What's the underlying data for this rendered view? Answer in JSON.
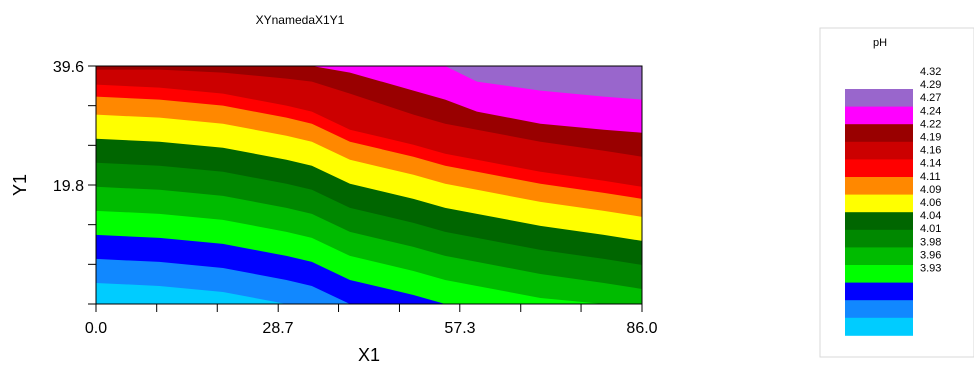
{
  "chart_data": {
    "type": "heatmap",
    "title": "XYnamedaX1Y1",
    "xlabel": "X1",
    "ylabel": "Y1",
    "x_ticks": [
      "0.0",
      "28.7",
      "57.3",
      "86.0"
    ],
    "y_ticks": [
      "39.6",
      "19.8"
    ],
    "xlim": [
      0,
      86
    ],
    "ylim": [
      0,
      39.6
    ],
    "colorbar": {
      "title": "pH",
      "levels": [
        "4.32",
        "4.29",
        "4.27",
        "4.24",
        "4.22",
        "4.19",
        "4.16",
        "4.14",
        "4.11",
        "4.09",
        "4.06",
        "4.04",
        "4.01",
        "3.98",
        "3.96",
        "3.93"
      ],
      "colors": [
        "#9966cc",
        "#ff00ff",
        "#990000",
        "#cc0000",
        "#ff0000",
        "#ff8800",
        "#ffff00",
        "#006600",
        "#008800",
        "#00bb00",
        "#00ff00",
        "#0000ff",
        "#1188ff",
        "#00ccff"
      ]
    },
    "boundaries": [
      {
        "x": [
          0,
          10,
          20,
          30,
          34,
          40,
          50,
          55,
          60,
          70,
          80,
          86
        ],
        "y": [
          36.5,
          36.0,
          35.0,
          33.0,
          32.0,
          29.0,
          26.5,
          25.0,
          24.0,
          22.0,
          20.5,
          19.5
        ]
      },
      {
        "x": [
          0,
          10,
          20,
          30,
          34,
          40,
          50,
          55,
          60,
          70,
          80,
          86
        ],
        "y": [
          39.0,
          39.0,
          38.5,
          37.5,
          37.0,
          35.0,
          31.5,
          30.0,
          29.0,
          27.0,
          25.5,
          24.5
        ]
      },
      {
        "x": [
          0,
          10,
          20,
          30,
          34,
          40,
          50,
          55,
          60,
          70,
          80,
          86
        ],
        "y": [
          39.6,
          39.6,
          39.6,
          39.6,
          39.6,
          38.5,
          35.5,
          34.0,
          32.0,
          30.0,
          29.0,
          28.5
        ]
      },
      {
        "x": [
          0,
          10,
          20,
          30,
          34,
          40,
          50,
          55,
          60,
          70,
          80,
          86
        ],
        "y": [
          39.6,
          39.6,
          39.6,
          39.6,
          39.6,
          39.6,
          39.6,
          39.6,
          37.0,
          35.5,
          34.5,
          34.0
        ]
      },
      {
        "x": [
          0,
          10,
          20,
          30,
          34,
          40,
          50,
          55,
          60,
          70,
          80,
          86
        ],
        "y": [
          39.6,
          39.6,
          39.6,
          39.6,
          39.6,
          39.6,
          39.6,
          39.6,
          39.6,
          38.5,
          37.5,
          37.0
        ]
      }
    ]
  }
}
